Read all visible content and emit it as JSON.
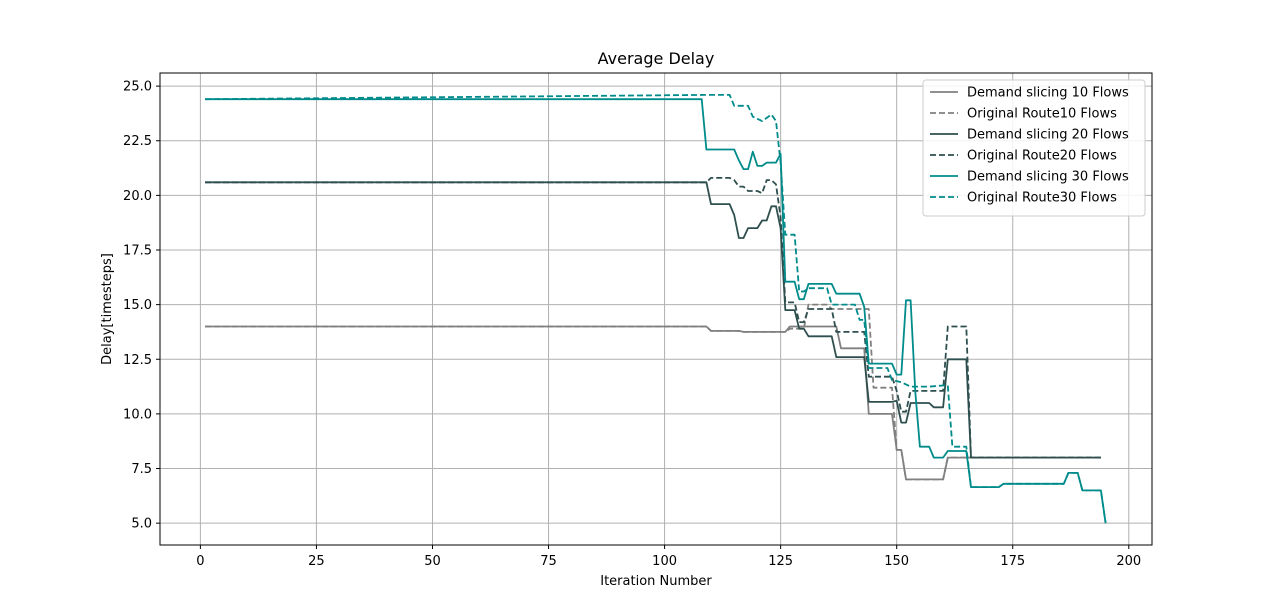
{
  "chart_data": {
    "type": "line",
    "title": "Average Delay",
    "xlabel": "Iteration Number",
    "ylabel": "Delay[timesteps]",
    "xlim": [
      -8.7,
      205
    ],
    "ylim": [
      4.0,
      25.6
    ],
    "xticks": [
      0,
      25,
      50,
      75,
      100,
      125,
      150,
      175,
      200
    ],
    "yticks": [
      5.0,
      7.5,
      10.0,
      12.5,
      15.0,
      17.5,
      20.0,
      22.5,
      25.0
    ],
    "xtick_labels": [
      "0",
      "25",
      "50",
      "75",
      "100",
      "125",
      "150",
      "175",
      "200"
    ],
    "ytick_labels": [
      "5.0",
      "7.5",
      "10.0",
      "12.5",
      "15.0",
      "17.5",
      "20.0",
      "22.5",
      "25.0"
    ],
    "grid": true,
    "legend_position": "top-right",
    "series": [
      {
        "name": "Demand slicing 10 Flows",
        "color": "#808080",
        "dash": "solid",
        "points": [
          [
            1,
            14.0
          ],
          [
            109,
            14.0
          ],
          [
            110,
            13.8
          ],
          [
            116,
            13.8
          ],
          [
            117,
            13.75
          ],
          [
            126,
            13.75
          ],
          [
            127,
            14.0
          ],
          [
            137,
            14.0
          ],
          [
            138,
            13.0
          ],
          [
            143,
            13.0
          ],
          [
            144,
            10.0
          ],
          [
            149,
            10.0
          ],
          [
            150,
            8.35
          ],
          [
            151,
            8.35
          ],
          [
            152,
            7.0
          ],
          [
            160,
            7.0
          ],
          [
            161,
            8.0
          ],
          [
            165,
            8.0
          ],
          [
            166,
            8.0
          ],
          [
            194,
            8.0
          ]
        ]
      },
      {
        "name": "Original Route10 Flows",
        "color": "#808080",
        "dash": "dashed",
        "points": [
          [
            1,
            14.0
          ],
          [
            109,
            14.0
          ],
          [
            110,
            13.8
          ],
          [
            116,
            13.8
          ],
          [
            117,
            13.75
          ],
          [
            126,
            13.75
          ],
          [
            127,
            13.9
          ],
          [
            130,
            13.9
          ],
          [
            131,
            15.0
          ],
          [
            135,
            15.0
          ],
          [
            136,
            14.8
          ],
          [
            144,
            14.8
          ],
          [
            145,
            11.2
          ],
          [
            149,
            11.2
          ],
          [
            150,
            8.35
          ],
          [
            151,
            8.35
          ],
          [
            152,
            7.0
          ],
          [
            160,
            7.0
          ],
          [
            161,
            8.0
          ],
          [
            165,
            8.0
          ],
          [
            166,
            8.0
          ],
          [
            194,
            8.0
          ]
        ]
      },
      {
        "name": "Demand slicing 20 Flows",
        "color": "#2f4f4f",
        "dash": "solid",
        "points": [
          [
            1,
            20.6
          ],
          [
            109,
            20.6
          ],
          [
            110,
            19.6
          ],
          [
            114,
            19.6
          ],
          [
            115,
            19.1
          ],
          [
            116,
            18.05
          ],
          [
            117,
            18.05
          ],
          [
            118,
            18.5
          ],
          [
            120,
            18.5
          ],
          [
            121,
            18.85
          ],
          [
            122,
            18.85
          ],
          [
            123,
            19.5
          ],
          [
            124,
            19.5
          ],
          [
            125,
            18.5
          ],
          [
            126,
            14.75
          ],
          [
            128,
            14.75
          ],
          [
            129,
            13.9
          ],
          [
            130,
            13.9
          ],
          [
            131,
            13.55
          ],
          [
            136,
            13.55
          ],
          [
            137,
            12.6
          ],
          [
            143,
            12.6
          ],
          [
            144,
            10.55
          ],
          [
            149,
            10.55
          ],
          [
            150,
            10.6
          ],
          [
            151,
            9.6
          ],
          [
            152,
            9.6
          ],
          [
            153,
            10.5
          ],
          [
            157,
            10.5
          ],
          [
            158,
            10.3
          ],
          [
            160,
            10.3
          ],
          [
            161,
            12.5
          ],
          [
            164,
            12.5
          ],
          [
            165,
            12.5
          ],
          [
            166,
            8.0
          ],
          [
            194,
            8.0
          ]
        ]
      },
      {
        "name": "Original Route20 Flows",
        "color": "#2f4f4f",
        "dash": "dashed",
        "points": [
          [
            1,
            20.6
          ],
          [
            109,
            20.6
          ],
          [
            110,
            20.8
          ],
          [
            114,
            20.8
          ],
          [
            115,
            20.7
          ],
          [
            116,
            20.4
          ],
          [
            117,
            20.4
          ],
          [
            118,
            20.2
          ],
          [
            120,
            20.2
          ],
          [
            121,
            20.1
          ],
          [
            122,
            20.7
          ],
          [
            123,
            20.7
          ],
          [
            124,
            20.5
          ],
          [
            125,
            19.0
          ],
          [
            126,
            15.1
          ],
          [
            128,
            15.1
          ],
          [
            129,
            14.2
          ],
          [
            130,
            14.2
          ],
          [
            131,
            14.8
          ],
          [
            136,
            14.8
          ],
          [
            137,
            13.75
          ],
          [
            143,
            13.75
          ],
          [
            144,
            11.7
          ],
          [
            149,
            11.7
          ],
          [
            150,
            11.05
          ],
          [
            151,
            10.1
          ],
          [
            152,
            10.1
          ],
          [
            153,
            11.05
          ],
          [
            160,
            11.05
          ],
          [
            161,
            14.0
          ],
          [
            165,
            14.0
          ],
          [
            166,
            8.0
          ],
          [
            194,
            8.0
          ]
        ]
      },
      {
        "name": "Demand slicing 30 Flows",
        "color": "#008b8b",
        "dash": "solid",
        "points": [
          [
            1,
            24.4
          ],
          [
            108,
            24.4
          ],
          [
            109,
            22.1
          ],
          [
            115,
            22.1
          ],
          [
            116,
            21.6
          ],
          [
            117,
            21.2
          ],
          [
            118,
            21.2
          ],
          [
            119,
            22.0
          ],
          [
            120,
            21.35
          ],
          [
            121,
            21.35
          ],
          [
            122,
            21.5
          ],
          [
            124,
            21.5
          ],
          [
            125,
            21.9
          ],
          [
            126,
            16.05
          ],
          [
            128,
            16.05
          ],
          [
            129,
            15.25
          ],
          [
            130,
            15.25
          ],
          [
            131,
            15.95
          ],
          [
            136,
            15.95
          ],
          [
            137,
            15.5
          ],
          [
            142,
            15.5
          ],
          [
            143,
            14.9
          ],
          [
            144,
            12.3
          ],
          [
            149,
            12.3
          ],
          [
            150,
            11.8
          ],
          [
            151,
            11.8
          ],
          [
            152,
            15.2
          ],
          [
            153,
            15.2
          ],
          [
            154,
            11.0
          ],
          [
            155,
            8.5
          ],
          [
            157,
            8.5
          ],
          [
            158,
            8.0
          ],
          [
            160,
            8.0
          ],
          [
            161,
            8.3
          ],
          [
            165,
            8.3
          ],
          [
            166,
            6.65
          ],
          [
            172,
            6.65
          ],
          [
            173,
            6.8
          ],
          [
            186,
            6.8
          ],
          [
            187,
            7.3
          ],
          [
            189,
            7.3
          ],
          [
            190,
            6.5
          ],
          [
            194,
            6.5
          ],
          [
            195,
            5.0
          ]
        ]
      },
      {
        "name": "Original Route30 Flows",
        "color": "#008b8b",
        "dash": "dashed",
        "points": [
          [
            1,
            24.4
          ],
          [
            109,
            24.6
          ],
          [
            114,
            24.6
          ],
          [
            115,
            24.1
          ],
          [
            118,
            24.1
          ],
          [
            119,
            23.6
          ],
          [
            121,
            23.4
          ],
          [
            123,
            23.7
          ],
          [
            124,
            23.4
          ],
          [
            125,
            21.5
          ],
          [
            126,
            18.2
          ],
          [
            128,
            18.2
          ],
          [
            129,
            15.6
          ],
          [
            130,
            15.6
          ],
          [
            131,
            15.75
          ],
          [
            135,
            15.75
          ],
          [
            136,
            15.0
          ],
          [
            141,
            15.0
          ],
          [
            142,
            14.3
          ],
          [
            143,
            14.3
          ],
          [
            144,
            12.1
          ],
          [
            148,
            12.1
          ],
          [
            149,
            11.55
          ],
          [
            151,
            11.45
          ],
          [
            153,
            11.25
          ],
          [
            157,
            11.25
          ],
          [
            160,
            11.3
          ],
          [
            161,
            11.3
          ],
          [
            162,
            8.5
          ],
          [
            165,
            8.5
          ],
          [
            166,
            6.65
          ],
          [
            172,
            6.65
          ],
          [
            173,
            6.8
          ],
          [
            186,
            6.8
          ],
          [
            187,
            7.3
          ],
          [
            189,
            7.3
          ],
          [
            190,
            6.5
          ],
          [
            194,
            6.5
          ],
          [
            195,
            5.0
          ]
        ]
      }
    ]
  }
}
